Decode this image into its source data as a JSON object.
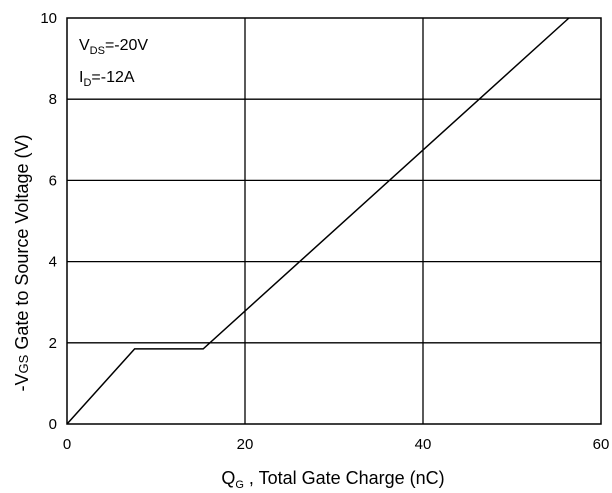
{
  "chart_data": {
    "type": "line",
    "xlabel": {
      "main": "Q",
      "sub": "G",
      "rest": " , Total Gate Charge (nC)"
    },
    "ylabel": {
      "prefix": "-V",
      "sub": "GS",
      "rest": " Gate to Source Voltage (V)"
    },
    "xlim": [
      0,
      60
    ],
    "ylim": [
      0,
      10
    ],
    "xticks": [
      0,
      20,
      40,
      60
    ],
    "yticks": [
      0,
      2,
      4,
      6,
      8,
      10
    ],
    "grid": true,
    "annotations": [
      {
        "main": "V",
        "sub": "DS",
        "rest": "=-20V"
      },
      {
        "main": "I",
        "sub": "D",
        "rest": "=-12A"
      }
    ],
    "series": [
      {
        "x": [
          0,
          7.6,
          15.3,
          56.4
        ],
        "y": [
          0,
          1.85,
          1.85,
          10
        ]
      }
    ]
  }
}
